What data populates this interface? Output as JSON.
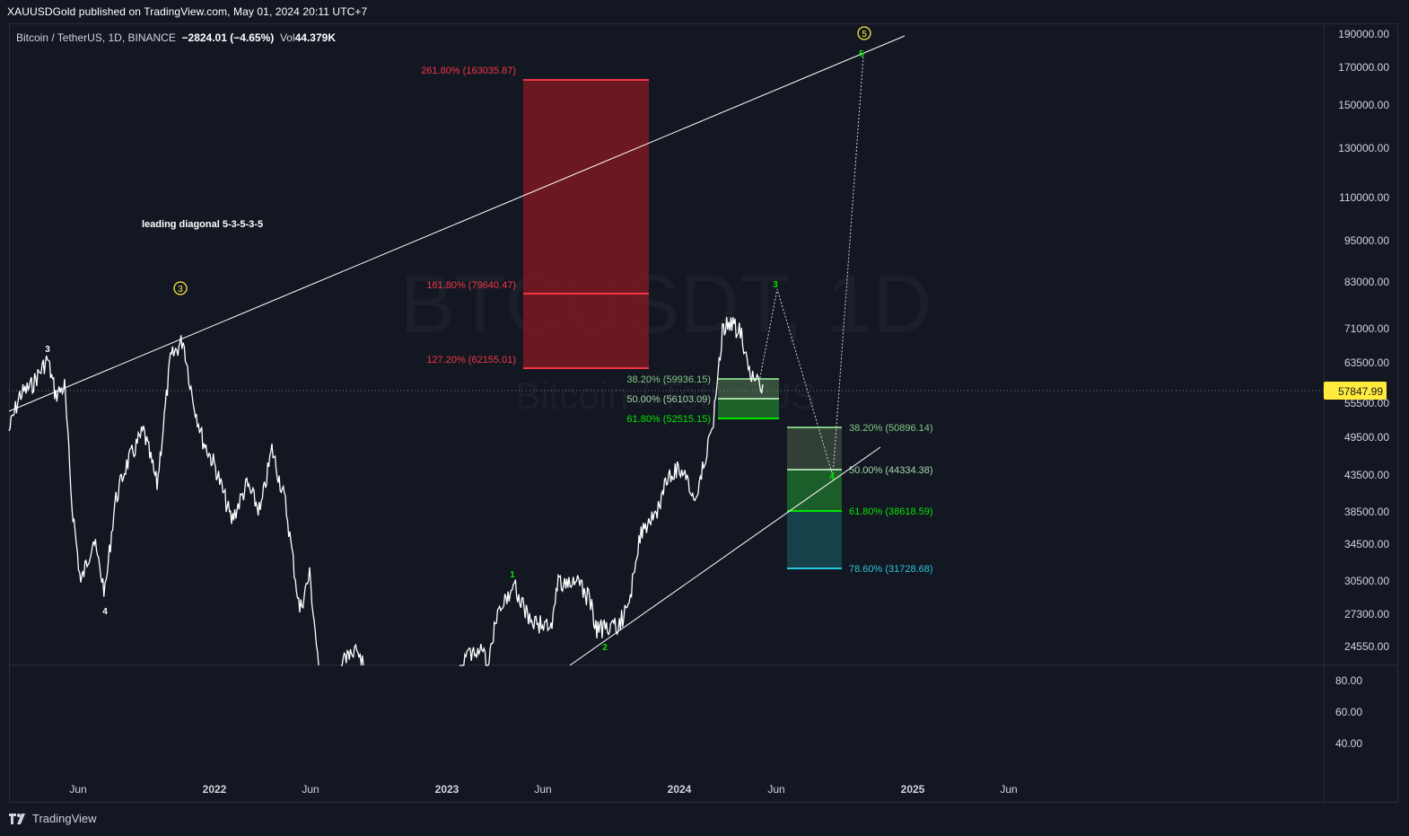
{
  "header": {
    "publisher": "XAUUSDGold published on TradingView.com, May 01, 2024 20:11 UTC+7"
  },
  "symbol_info": {
    "name": "Bitcoin / TetherUS, 1D, BINANCE",
    "change": "−2824.01 (−4.65%)",
    "volume_label": "Vol",
    "volume_value": "44.379K"
  },
  "watermark": {
    "ticker": "BTCUSDT, 1D",
    "name": "Bitcoin / TetherUS"
  },
  "price_axis": {
    "ticks": [
      "190000.00",
      "170000.00",
      "150000.00",
      "130000.00",
      "110000.00",
      "95000.00",
      "83000.00",
      "71000.00",
      "63500.00",
      "55500.00",
      "49500.00",
      "43500.00",
      "38500.00",
      "34500.00",
      "30500.00",
      "27300.00",
      "24550.00"
    ],
    "current_price": "57847.99",
    "current_price_color": "#ffeb3b"
  },
  "indicator_axis": {
    "ticks": [
      "80.00",
      "60.00",
      "40.00"
    ]
  },
  "time_axis": {
    "labels": [
      "Jun",
      "2022",
      "Jun",
      "2023",
      "Jun",
      "2024",
      "Jun",
      "2025",
      "Jun"
    ]
  },
  "annotations": {
    "pattern_label": "leading diagonal 5-3-5-3-5",
    "wave_labels": [
      "3",
      "4",
      "1",
      "2",
      "3",
      "4",
      "5"
    ],
    "circled_labels": [
      "3",
      "5"
    ],
    "extension_levels": [
      "261.80% (163035.87)",
      "161.80% (79640.47)",
      "127.20% (62155.01)"
    ],
    "retracement_near": [
      "38.20% (59936.15)",
      "50.00% (56103.09)",
      "61.80% (52515.15)"
    ],
    "retracement_far": [
      "38.20% (50896.14)",
      "50.00% (44334.38)",
      "61.80% (38618.59)",
      "78.60% (31728.68)"
    ]
  },
  "colors": {
    "background": "#131722",
    "extension_red": "#f23645",
    "fib_green": "#4caf50",
    "fib_bright_green": "#00e600",
    "fib_cyan": "#26c6da",
    "circle_yellow": "#ffeb3b"
  },
  "footer": {
    "brand": "TradingView"
  }
}
